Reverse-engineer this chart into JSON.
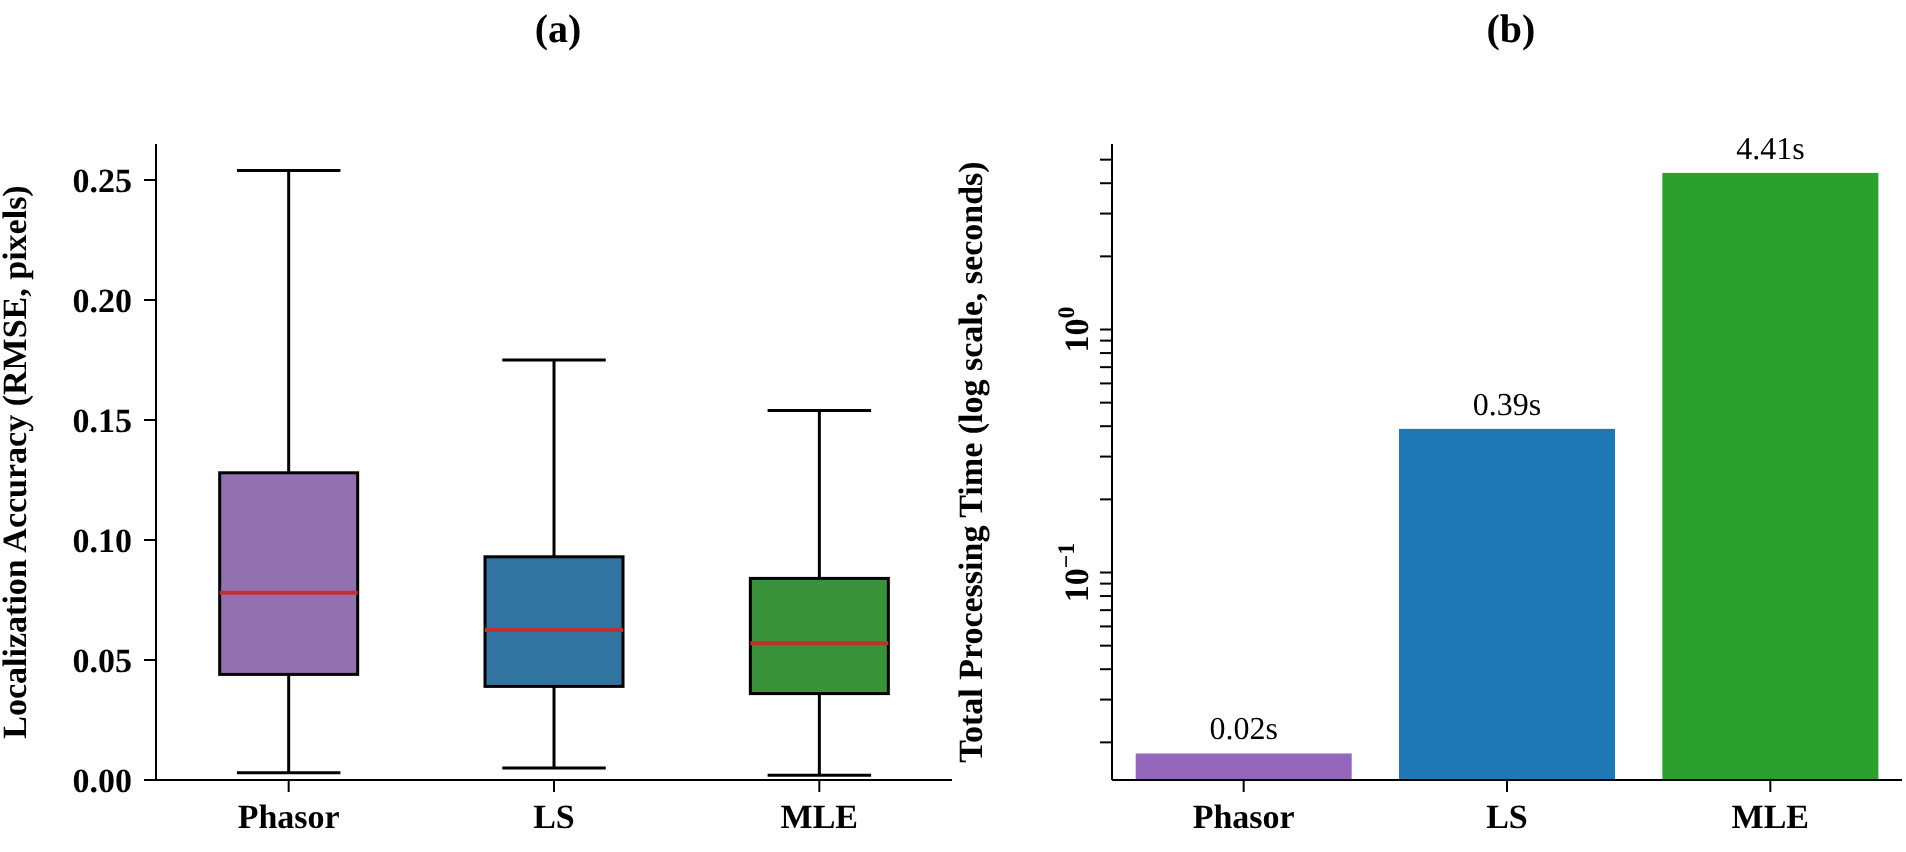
{
  "chart_data": [
    {
      "type": "box",
      "title": "(a)",
      "ylabel": "Localization Accuracy (RMSE, pixels)",
      "categories": [
        "Phasor",
        "LS",
        "MLE"
      ],
      "boxes": [
        {
          "low": 0.003,
          "q1": 0.044,
          "median": 0.078,
          "q3": 0.128,
          "high": 0.254
        },
        {
          "low": 0.005,
          "q1": 0.039,
          "median": 0.0625,
          "q3": 0.093,
          "high": 0.175
        },
        {
          "low": 0.002,
          "q1": 0.036,
          "median": 0.057,
          "q3": 0.084,
          "high": 0.154
        }
      ],
      "colors": [
        "#9370b0",
        "#3274a1",
        "#3a923a"
      ],
      "ylim": [
        0,
        0.265
      ],
      "yticks": [
        {
          "value": 0,
          "label": "0.00"
        },
        {
          "value": 0.05,
          "label": "0.05"
        },
        {
          "value": 0.1,
          "label": "0.10"
        },
        {
          "value": 0.15,
          "label": "0.15"
        },
        {
          "value": 0.2,
          "label": "0.20"
        },
        {
          "value": 0.25,
          "label": "0.25"
        }
      ]
    },
    {
      "type": "bar",
      "title": "(b)",
      "ylabel": "Total Processing Time (log scale, seconds)",
      "categories": [
        "Phasor",
        "LS",
        "MLE"
      ],
      "values": [
        0.018,
        0.39,
        4.41
      ],
      "value_labels": [
        "0.02s",
        "0.39s",
        "4.41s"
      ],
      "colors": [
        "#9467bd",
        "#1f77b4",
        "#2ca02c"
      ],
      "log": true,
      "ylim": [
        0.014,
        5.8
      ],
      "yticks": [
        {
          "value": 0.02,
          "label": null
        },
        {
          "value": 0.03,
          "label": null
        },
        {
          "value": 0.04,
          "label": null
        },
        {
          "value": 0.05,
          "label": null
        },
        {
          "value": 0.06,
          "label": null
        },
        {
          "value": 0.07,
          "label": null
        },
        {
          "value": 0.08,
          "label": null
        },
        {
          "value": 0.09,
          "label": null
        },
        {
          "value": 0.1,
          "label": "10$^{−1}$"
        },
        {
          "value": 0.2,
          "label": null
        },
        {
          "value": 0.3,
          "label": null
        },
        {
          "value": 0.4,
          "label": null
        },
        {
          "value": 0.5,
          "label": null
        },
        {
          "value": 0.6,
          "label": null
        },
        {
          "value": 0.7,
          "label": null
        },
        {
          "value": 0.8,
          "label": null
        },
        {
          "value": 0.9,
          "label": null
        },
        {
          "value": 1,
          "label": "10$^{0}$"
        },
        {
          "value": 2,
          "label": null
        },
        {
          "value": 3,
          "label": null
        },
        {
          "value": 4,
          "label": null
        },
        {
          "value": 5,
          "label": null
        }
      ]
    }
  ]
}
